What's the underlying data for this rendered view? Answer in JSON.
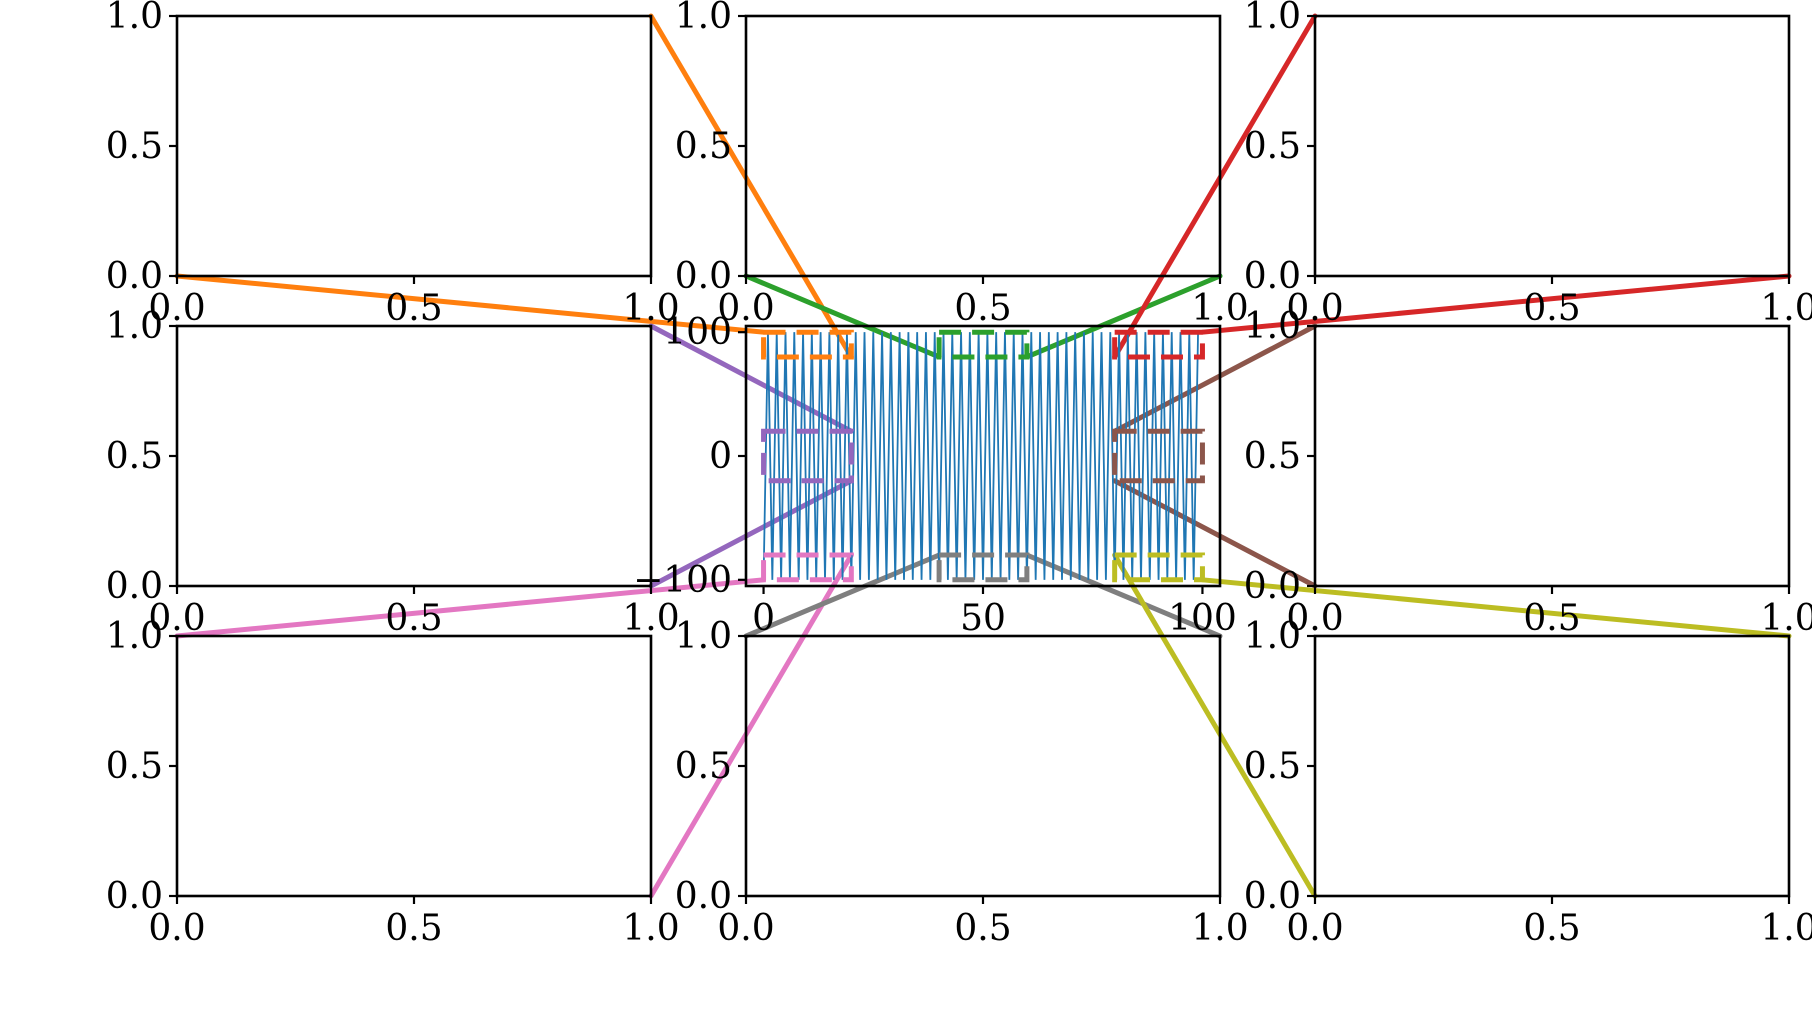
{
  "figure": {
    "grid": false,
    "tick_marks": "outside",
    "font": "serif"
  },
  "chart_data": [
    {
      "panel": "top-left",
      "type": "line",
      "xlim": [
        0,
        1
      ],
      "ylim": [
        0,
        1
      ],
      "xticks": [
        "0.0",
        "0.5",
        "1.0"
      ],
      "yticks": [
        "0.0",
        "0.5",
        "1.0"
      ],
      "series": []
    },
    {
      "panel": "top-center",
      "type": "line",
      "xlim": [
        0,
        1
      ],
      "ylim": [
        0,
        1
      ],
      "xticks": [
        "0.0",
        "0.5",
        "1.0"
      ],
      "yticks": [
        "0.0",
        "0.5",
        "1.0"
      ],
      "series": []
    },
    {
      "panel": "top-right",
      "type": "line",
      "xlim": [
        0,
        1
      ],
      "ylim": [
        0,
        1
      ],
      "xticks": [
        "0.0",
        "0.5",
        "1.0"
      ],
      "yticks": [
        "0.0",
        "0.5",
        "1.0"
      ],
      "series": []
    },
    {
      "panel": "middle-left",
      "type": "line",
      "xlim": [
        0,
        1
      ],
      "ylim": [
        0,
        1
      ],
      "xticks": [
        "0.0",
        "0.5",
        "1.0"
      ],
      "yticks": [
        "0.0",
        "0.5",
        "1.0"
      ],
      "series": []
    },
    {
      "panel": "middle-center",
      "type": "line",
      "xlim": [
        -4,
        104
      ],
      "ylim": [
        -105,
        105
      ],
      "xticks": [
        "0",
        "50",
        "100"
      ],
      "yticks": [
        "−100",
        "0",
        "100"
      ],
      "xticks_values": [
        0,
        50,
        100
      ],
      "yticks_values": [
        -100,
        0,
        100
      ],
      "series": [
        {
          "color": "#1f77b4",
          "x": [
            0,
            1,
            2,
            3,
            4,
            5,
            6,
            7,
            8,
            9,
            10,
            11,
            12,
            13,
            14,
            15,
            16,
            17,
            18,
            19,
            20,
            21,
            22,
            23,
            24,
            25,
            26,
            27,
            28,
            29,
            30,
            31,
            32,
            33,
            34,
            35,
            36,
            37,
            38,
            39,
            40,
            41,
            42,
            43,
            44,
            45,
            46,
            47,
            48,
            49,
            50,
            51,
            52,
            53,
            54,
            55,
            56,
            57,
            58,
            59,
            60,
            61,
            62,
            63,
            64,
            65,
            66,
            67,
            68,
            69,
            70,
            71,
            72,
            73,
            74,
            75,
            76,
            77,
            78,
            79,
            80,
            81,
            82,
            83,
            84,
            85,
            86,
            87,
            88,
            89,
            90,
            91,
            92,
            93,
            94,
            95,
            96,
            97,
            98,
            99
          ],
          "y": [
            -100,
            100,
            -100,
            100,
            -100,
            100,
            -100,
            100,
            -100,
            100,
            -100,
            100,
            -100,
            100,
            -100,
            100,
            -100,
            100,
            -100,
            100,
            -100,
            100,
            -100,
            100,
            -100,
            100,
            -100,
            100,
            -100,
            100,
            -100,
            100,
            -100,
            100,
            -100,
            100,
            -100,
            100,
            -100,
            100,
            -100,
            100,
            -100,
            100,
            -100,
            100,
            -100,
            100,
            -100,
            100,
            -100,
            100,
            -100,
            100,
            -100,
            100,
            -100,
            100,
            -100,
            100,
            -100,
            100,
            -100,
            100,
            -100,
            100,
            -100,
            100,
            -100,
            100,
            -100,
            100,
            -100,
            100,
            -100,
            100,
            -100,
            100,
            -100,
            100,
            -100,
            100,
            -100,
            100,
            -100,
            100,
            -100,
            100,
            -100,
            100,
            -100,
            100,
            -100,
            100,
            -100,
            100,
            -100,
            100,
            -100,
            100
          ]
        }
      ],
      "inset_boxes": [
        {
          "target": "top-left",
          "color": "#ff7f0e",
          "x": [
            0,
            20
          ],
          "y": [
            80,
            100
          ]
        },
        {
          "target": "top-center",
          "color": "#2ca02c",
          "x": [
            40,
            60
          ],
          "y": [
            80,
            100
          ]
        },
        {
          "target": "top-right",
          "color": "#d62728",
          "x": [
            80,
            100
          ],
          "y": [
            80,
            100
          ]
        },
        {
          "target": "middle-left",
          "color": "#9467bd",
          "x": [
            0,
            20
          ],
          "y": [
            -20,
            20
          ]
        },
        {
          "target": "middle-right",
          "color": "#8c564b",
          "x": [
            80,
            100
          ],
          "y": [
            -20,
            20
          ]
        },
        {
          "target": "bottom-left",
          "color": "#e377c2",
          "x": [
            0,
            20
          ],
          "y": [
            -100,
            -80
          ]
        },
        {
          "target": "bottom-center",
          "color": "#7f7f7f",
          "x": [
            40,
            60
          ],
          "y": [
            -100,
            -80
          ]
        },
        {
          "target": "bottom-right",
          "color": "#bcbd22",
          "x": [
            80,
            100
          ],
          "y": [
            -100,
            -80
          ]
        }
      ]
    },
    {
      "panel": "middle-right",
      "type": "line",
      "xlim": [
        0,
        1
      ],
      "ylim": [
        0,
        1
      ],
      "xticks": [
        "0.0",
        "0.5",
        "1.0"
      ],
      "yticks": [
        "0.0",
        "0.5",
        "1.0"
      ],
      "series": []
    },
    {
      "panel": "bottom-left",
      "type": "line",
      "xlim": [
        0,
        1
      ],
      "ylim": [
        0,
        1
      ],
      "xticks": [
        "0.0",
        "0.5",
        "1.0"
      ],
      "yticks": [
        "0.0",
        "0.5",
        "1.0"
      ],
      "series": []
    },
    {
      "panel": "bottom-center",
      "type": "line",
      "xlim": [
        0,
        1
      ],
      "ylim": [
        0,
        1
      ],
      "xticks": [
        "0.0",
        "0.5",
        "1.0"
      ],
      "yticks": [
        "0.0",
        "0.5",
        "1.0"
      ],
      "series": []
    },
    {
      "panel": "bottom-right",
      "type": "line",
      "xlim": [
        0,
        1
      ],
      "ylim": [
        0,
        1
      ],
      "xticks": [
        "0.0",
        "0.5",
        "1.0"
      ],
      "yticks": [
        "0.0",
        "0.5",
        "1.0"
      ],
      "series": []
    }
  ]
}
